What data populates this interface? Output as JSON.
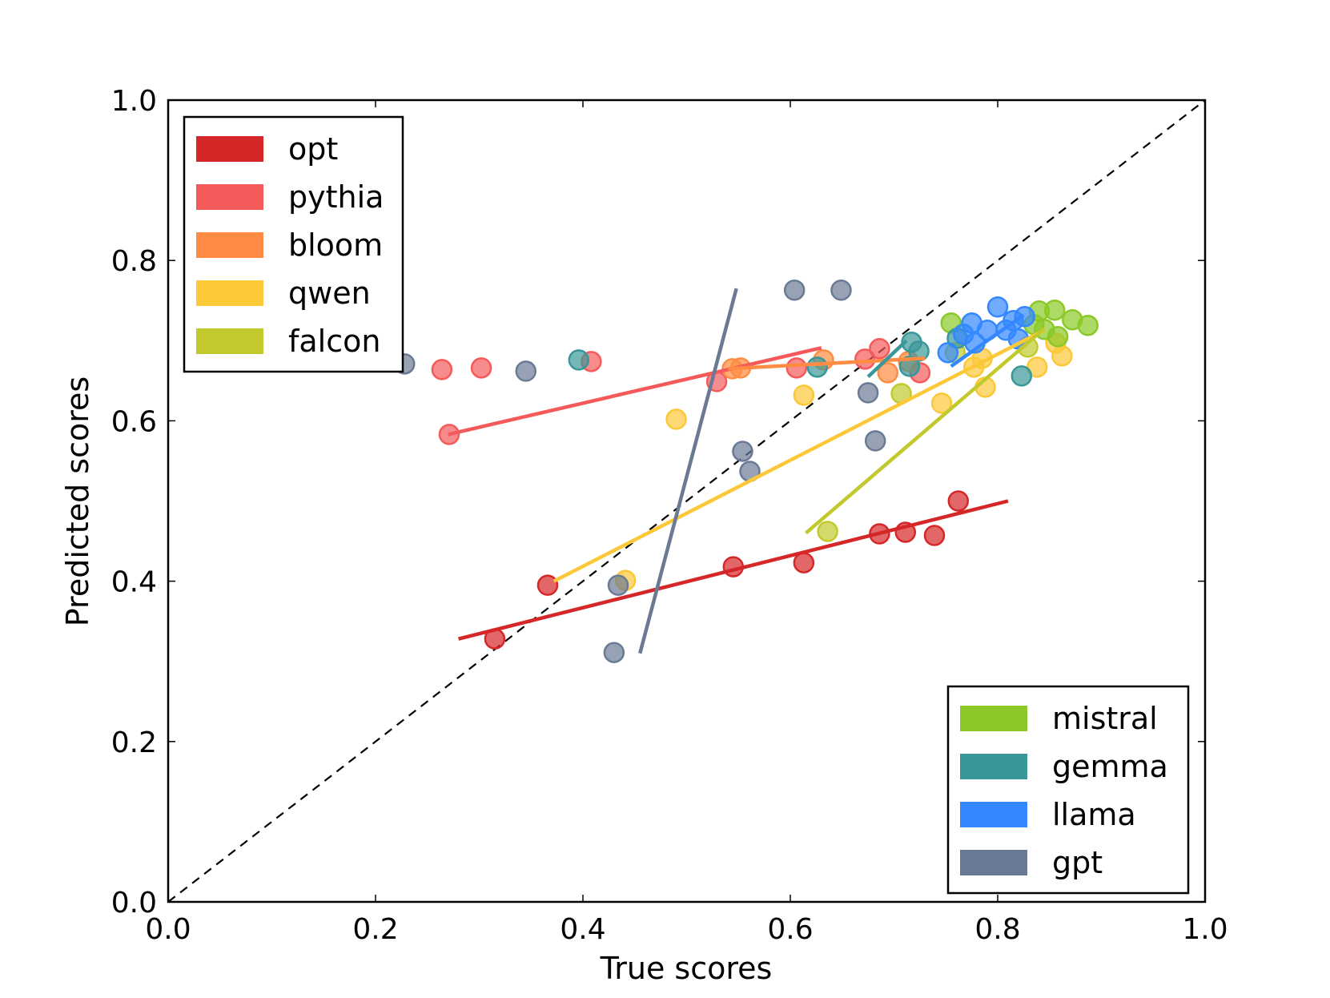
{
  "chart_data": {
    "type": "scatter",
    "xlabel": "True scores",
    "ylabel": "Predicted scores",
    "xlim": [
      0.0,
      1.0
    ],
    "ylim": [
      0.0,
      1.0
    ],
    "x_ticks": [
      "0.0",
      "0.2",
      "0.4",
      "0.6",
      "0.8",
      "1.0"
    ],
    "y_ticks": [
      "0.0",
      "0.2",
      "0.4",
      "0.6",
      "0.8",
      "1.0"
    ],
    "diagonal": true,
    "legends": [
      {
        "placement": "top-left",
        "entries": [
          "opt",
          "pythia",
          "bloom",
          "qwen",
          "falcon"
        ]
      },
      {
        "placement": "bottom-right",
        "entries": [
          "mistral",
          "gemma",
          "llama",
          "gpt"
        ]
      }
    ],
    "series": [
      {
        "name": "opt",
        "color": "#d62728",
        "points": [
          [
            0.315,
            0.328
          ],
          [
            0.366,
            0.395
          ],
          [
            0.545,
            0.418
          ],
          [
            0.613,
            0.423
          ],
          [
            0.686,
            0.459
          ],
          [
            0.711,
            0.461
          ],
          [
            0.739,
            0.457
          ],
          [
            0.762,
            0.5
          ]
        ],
        "fit": [
          [
            0.28,
            0.328
          ],
          [
            0.81,
            0.5
          ]
        ]
      },
      {
        "name": "pythia",
        "color": "#f55a5a",
        "points": [
          [
            0.271,
            0.583
          ],
          [
            0.264,
            0.664
          ],
          [
            0.302,
            0.666
          ],
          [
            0.408,
            0.674
          ],
          [
            0.529,
            0.649
          ],
          [
            0.606,
            0.666
          ],
          [
            0.672,
            0.677
          ],
          [
            0.686,
            0.69
          ],
          [
            0.725,
            0.66
          ]
        ],
        "fit": [
          [
            0.27,
            0.583
          ],
          [
            0.63,
            0.691
          ]
        ]
      },
      {
        "name": "bloom",
        "color": "#ff8c42",
        "points": [
          [
            0.544,
            0.665
          ],
          [
            0.552,
            0.666
          ],
          [
            0.632,
            0.676
          ],
          [
            0.694,
            0.66
          ],
          [
            0.714,
            0.674
          ]
        ],
        "fit": [
          [
            0.54,
            0.665
          ],
          [
            0.73,
            0.678
          ]
        ]
      },
      {
        "name": "qwen",
        "color": "#fcc838",
        "points": [
          [
            0.441,
            0.401
          ],
          [
            0.49,
            0.602
          ],
          [
            0.613,
            0.632
          ],
          [
            0.746,
            0.622
          ],
          [
            0.777,
            0.667
          ],
          [
            0.788,
            0.642
          ],
          [
            0.785,
            0.678
          ],
          [
            0.838,
            0.667
          ],
          [
            0.856,
            0.697
          ],
          [
            0.862,
            0.681
          ]
        ],
        "fit": [
          [
            0.372,
            0.4
          ],
          [
            0.845,
            0.713
          ]
        ]
      },
      {
        "name": "falcon",
        "color": "#c2c92d",
        "points": [
          [
            0.636,
            0.462
          ],
          [
            0.707,
            0.634
          ],
          [
            0.759,
            0.685
          ],
          [
            0.829,
            0.692
          ]
        ],
        "fit": [
          [
            0.615,
            0.46
          ],
          [
            0.845,
            0.715
          ]
        ]
      },
      {
        "name": "mistral",
        "color": "#8ac926",
        "points": [
          [
            0.755,
            0.722
          ],
          [
            0.84,
            0.737
          ],
          [
            0.855,
            0.738
          ],
          [
            0.872,
            0.726
          ],
          [
            0.887,
            0.719
          ],
          [
            0.835,
            0.72
          ],
          [
            0.845,
            0.714
          ],
          [
            0.858,
            0.705
          ]
        ],
        "fit": []
      },
      {
        "name": "gemma",
        "color": "#3a9799",
        "points": [
          [
            0.396,
            0.676
          ],
          [
            0.626,
            0.667
          ],
          [
            0.715,
            0.668
          ],
          [
            0.717,
            0.698
          ],
          [
            0.724,
            0.687
          ],
          [
            0.761,
            0.703
          ],
          [
            0.823,
            0.656
          ]
        ],
        "fit": [
          [
            0.675,
            0.655
          ],
          [
            0.712,
            0.7
          ]
        ]
      },
      {
        "name": "llama",
        "color": "#3388ff",
        "points": [
          [
            0.752,
            0.685
          ],
          [
            0.767,
            0.708
          ],
          [
            0.775,
            0.722
          ],
          [
            0.79,
            0.713
          ],
          [
            0.8,
            0.742
          ],
          [
            0.808,
            0.713
          ],
          [
            0.815,
            0.725
          ],
          [
            0.82,
            0.702
          ],
          [
            0.826,
            0.73
          ],
          [
            0.778,
            0.697
          ]
        ],
        "fit": [
          [
            0.755,
            0.668
          ],
          [
            0.825,
            0.732
          ]
        ]
      },
      {
        "name": "gpt",
        "color": "#6b7a94",
        "points": [
          [
            0.228,
            0.671
          ],
          [
            0.345,
            0.662
          ],
          [
            0.43,
            0.311
          ],
          [
            0.434,
            0.395
          ],
          [
            0.554,
            0.562
          ],
          [
            0.561,
            0.537
          ],
          [
            0.604,
            0.763
          ],
          [
            0.649,
            0.763
          ],
          [
            0.675,
            0.635
          ],
          [
            0.682,
            0.575
          ]
        ],
        "fit": [
          [
            0.455,
            0.31
          ],
          [
            0.548,
            0.765
          ]
        ]
      }
    ]
  }
}
